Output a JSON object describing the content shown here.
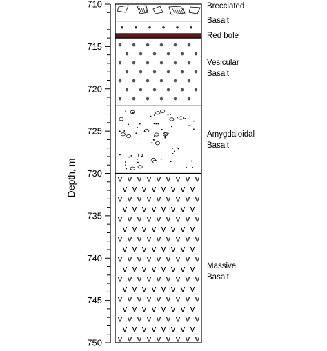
{
  "axis": {
    "label": "Depth, m",
    "min": 710,
    "max": 750,
    "major_ticks": [
      "710",
      "715",
      "720",
      "725",
      "730",
      "735",
      "740",
      "745",
      "750"
    ],
    "minor_step": 1
  },
  "column_labels": {
    "brecciated": [
      "Brecciated",
      "Basalt"
    ],
    "red_bole": [
      "Red bole"
    ],
    "vesicular": [
      "Vesicular",
      "Basalt"
    ],
    "amygdaloidal": [
      "Amygdaloidal",
      "Basalt"
    ],
    "massive": [
      "Massive",
      "Basalt"
    ]
  },
  "chart_data": {
    "type": "table",
    "depth_unit": "m",
    "layers": [
      {
        "name": "Brecciated Basalt",
        "top": 710,
        "bottom": 712,
        "pattern": "breccia"
      },
      {
        "name": "Basalt",
        "top": 712,
        "bottom": 713.5,
        "pattern": "dots"
      },
      {
        "name": "Red bole",
        "top": 713.5,
        "bottom": 714,
        "pattern": "solid",
        "color": "#5a1a1a"
      },
      {
        "name": "Vesicular Basalt",
        "top": 714,
        "bottom": 722,
        "pattern": "vesicles"
      },
      {
        "name": "Amygdaloidal Basalt",
        "top": 722,
        "bottom": 730,
        "pattern": "amygdales"
      },
      {
        "name": "Massive Basalt",
        "top": 730,
        "bottom": 750,
        "pattern": "v-marks"
      }
    ]
  }
}
